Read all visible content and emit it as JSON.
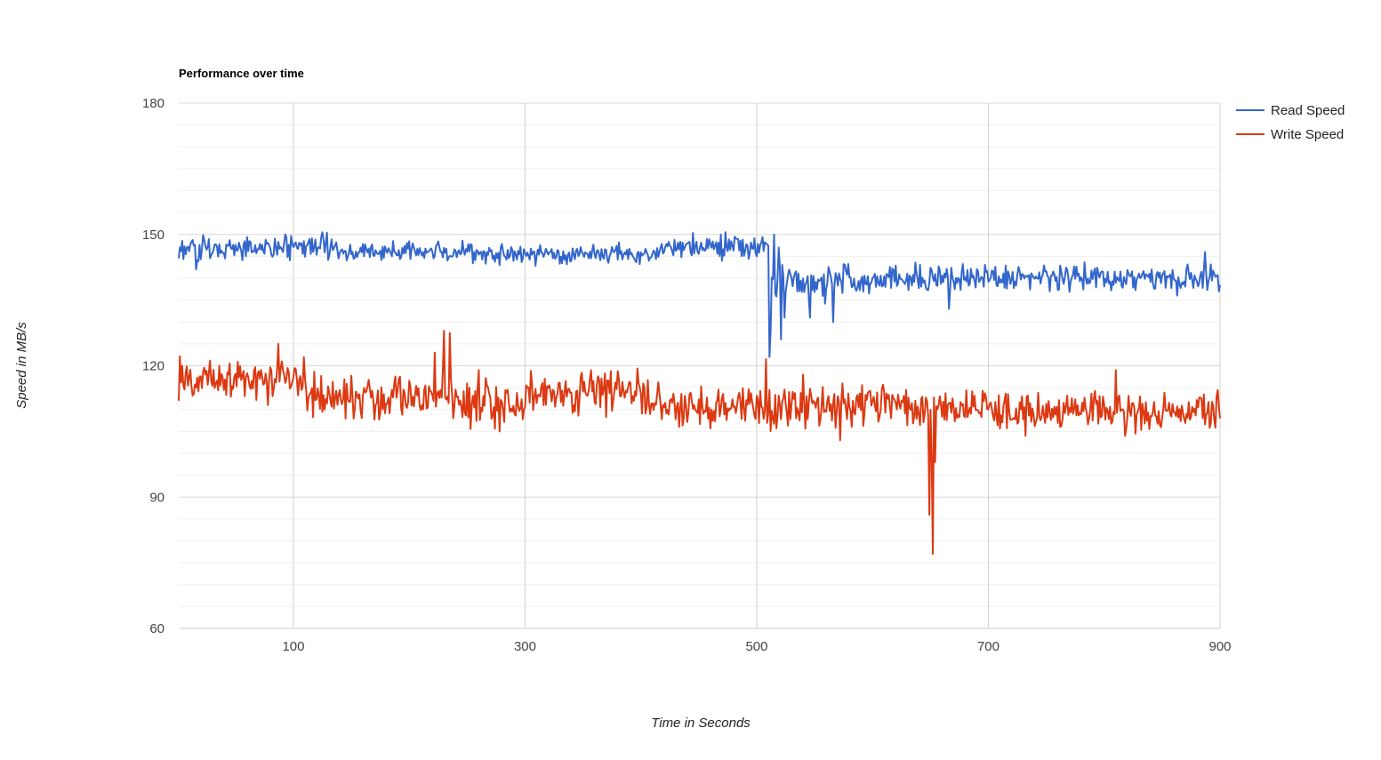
{
  "chart_data": {
    "type": "line",
    "title": "Performance over time",
    "xlabel": "Time in Seconds",
    "ylabel": "Speed in MB/s",
    "xlim": [
      1,
      900
    ],
    "ylim": [
      60,
      180
    ],
    "x_ticks": [
      100,
      300,
      500,
      700,
      900
    ],
    "y_ticks": [
      60,
      90,
      120,
      150,
      180
    ],
    "y_minor_step": 5,
    "grid": true,
    "legend_position": "right",
    "sample_interval_seconds": 1,
    "series": [
      {
        "name": "Read Speed",
        "color": "#3366cc",
        "segments": [
          {
            "from": 1,
            "to": 30,
            "base": 146.5,
            "noise": 1.6
          },
          {
            "from": 30,
            "to": 130,
            "base": 147,
            "noise": 1.3
          },
          {
            "from": 130,
            "to": 260,
            "base": 146,
            "noise": 1.2
          },
          {
            "from": 260,
            "to": 420,
            "base": 145.5,
            "noise": 1.1
          },
          {
            "from": 420,
            "to": 500,
            "base": 147,
            "noise": 1.3
          },
          {
            "from": 500,
            "to": 512,
            "base": 147,
            "noise": 1.6
          },
          {
            "from": 512,
            "to": 560,
            "base": 139,
            "noise": 2.3
          },
          {
            "from": 560,
            "to": 700,
            "base": 140,
            "noise": 1.5
          },
          {
            "from": 700,
            "to": 900,
            "base": 140,
            "noise": 1.5
          }
        ],
        "events": [
          {
            "x": 16,
            "y": 142
          },
          {
            "x": 93,
            "y": 150
          },
          {
            "x": 125,
            "y": 150.5
          },
          {
            "x": 473,
            "y": 150.5
          },
          {
            "x": 508,
            "y": 148
          },
          {
            "x": 511,
            "y": 122
          },
          {
            "x": 512,
            "y": 128
          },
          {
            "x": 515,
            "y": 150
          },
          {
            "x": 519,
            "y": 147
          },
          {
            "x": 521,
            "y": 126
          },
          {
            "x": 524,
            "y": 131
          },
          {
            "x": 546,
            "y": 131
          },
          {
            "x": 566,
            "y": 130
          },
          {
            "x": 666,
            "y": 133
          },
          {
            "x": 887,
            "y": 146
          },
          {
            "x": 899,
            "y": 137
          }
        ]
      },
      {
        "name": "Write Speed",
        "color": "#dc3912",
        "segments": [
          {
            "from": 1,
            "to": 110,
            "base": 117,
            "noise": 2.2
          },
          {
            "from": 110,
            "to": 240,
            "base": 113,
            "noise": 2.5
          },
          {
            "from": 240,
            "to": 300,
            "base": 111.5,
            "noise": 2.6
          },
          {
            "from": 300,
            "to": 400,
            "base": 114,
            "noise": 2.4
          },
          {
            "from": 400,
            "to": 500,
            "base": 111,
            "noise": 2.3
          },
          {
            "from": 500,
            "to": 640,
            "base": 111,
            "noise": 2.4
          },
          {
            "from": 640,
            "to": 700,
            "base": 110.5,
            "noise": 2.4
          },
          {
            "from": 700,
            "to": 900,
            "base": 109.5,
            "noise": 2.4
          }
        ],
        "events": [
          {
            "x": 1,
            "y": 112
          },
          {
            "x": 4,
            "y": 120
          },
          {
            "x": 78,
            "y": 111
          },
          {
            "x": 87,
            "y": 125
          },
          {
            "x": 90,
            "y": 121
          },
          {
            "x": 222,
            "y": 123
          },
          {
            "x": 230,
            "y": 128
          },
          {
            "x": 233,
            "y": 113
          },
          {
            "x": 235,
            "y": 127.5
          },
          {
            "x": 238,
            "y": 108
          },
          {
            "x": 260,
            "y": 119
          },
          {
            "x": 278,
            "y": 105
          },
          {
            "x": 508,
            "y": 121.5
          },
          {
            "x": 540,
            "y": 118
          },
          {
            "x": 572,
            "y": 103
          },
          {
            "x": 649,
            "y": 86
          },
          {
            "x": 651,
            "y": 100
          },
          {
            "x": 652,
            "y": 77
          },
          {
            "x": 654,
            "y": 98
          },
          {
            "x": 810,
            "y": 119
          },
          {
            "x": 818,
            "y": 104
          },
          {
            "x": 897,
            "y": 113
          },
          {
            "x": 900,
            "y": 108
          }
        ]
      }
    ]
  }
}
